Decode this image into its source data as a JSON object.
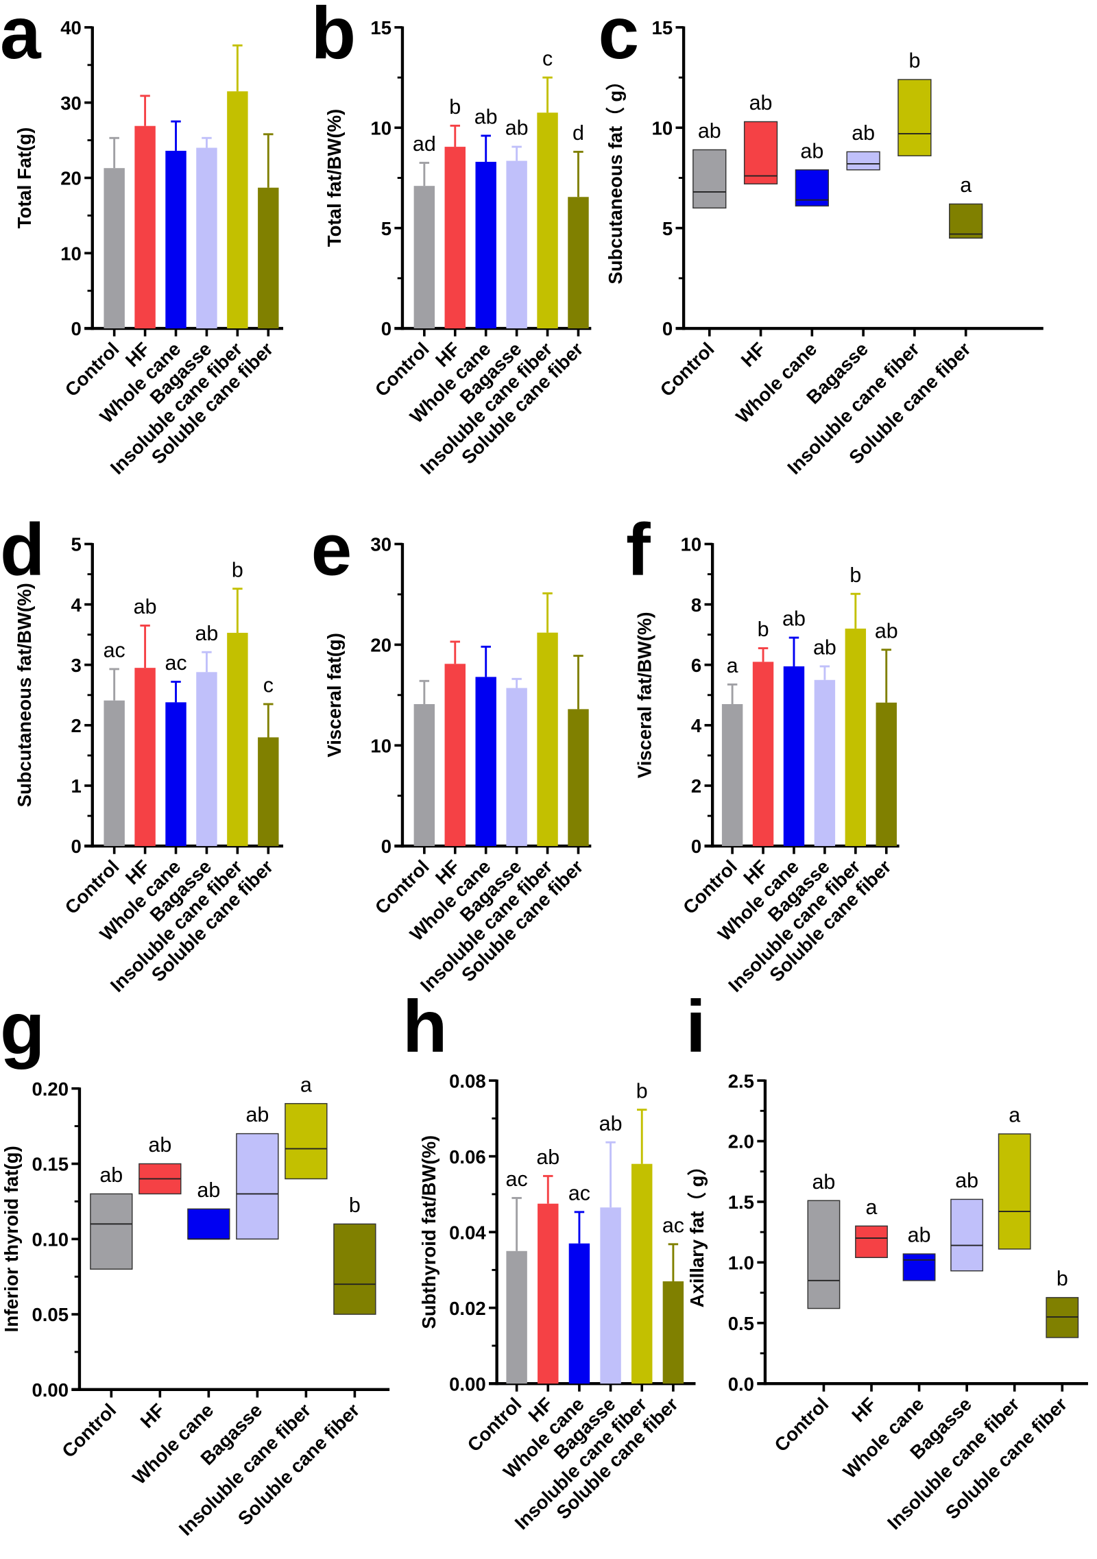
{
  "categories": [
    "Control",
    "HF",
    "Whole cane",
    "Bagasse",
    "Insoluble cane fiber",
    "Soluble cane fiber"
  ],
  "colors": [
    "#a0a0a4",
    "#f54145",
    "#0000f2",
    "#c0c0fa",
    "#c3c000",
    "#808000"
  ],
  "chart_data": [
    {
      "panel": "a",
      "type": "bar",
      "ylabel": "Total Fat(g)",
      "ylim": [
        0,
        40
      ],
      "yticks": [
        "0",
        "10",
        "20",
        "30",
        "40"
      ],
      "values": [
        21.3,
        26.9,
        23.6,
        24.0,
        31.5,
        18.7
      ],
      "error_upper": [
        25.3,
        30.9,
        27.5,
        25.3,
        37.6,
        25.8
      ],
      "letters": []
    },
    {
      "panel": "b",
      "type": "bar",
      "ylabel": "Total fat/BW(%)",
      "ylim": [
        0,
        15
      ],
      "yticks": [
        "0",
        "5",
        "10",
        "15"
      ],
      "values": [
        7.1,
        9.05,
        8.3,
        8.35,
        10.75,
        6.55
      ],
      "error_upper": [
        8.25,
        10.1,
        9.6,
        9.05,
        12.5,
        8.8
      ],
      "letters": [
        "ad",
        "b",
        "ab",
        "ab",
        "c",
        "d"
      ]
    },
    {
      "panel": "c",
      "type": "floating-box",
      "ylabel": "Subcutaneous fat（ g）",
      "ylim": [
        0,
        15
      ],
      "yticks": [
        "0",
        "5",
        "10",
        "15"
      ],
      "min": [
        6.0,
        7.2,
        6.1,
        7.9,
        8.6,
        4.5
      ],
      "median": [
        6.8,
        7.6,
        6.4,
        8.2,
        9.7,
        4.7
      ],
      "max": [
        8.9,
        10.3,
        7.9,
        8.8,
        12.4,
        6.2
      ],
      "letters": [
        "ab",
        "ab",
        "ab",
        "ab",
        "b",
        "a"
      ]
    },
    {
      "panel": "d",
      "type": "bar",
      "ylabel": "Subcutaneous fat/BW(%)",
      "ylim": [
        0,
        5
      ],
      "yticks": [
        "0",
        "1",
        "2",
        "3",
        "4",
        "5"
      ],
      "values": [
        2.41,
        2.95,
        2.38,
        2.88,
        3.53,
        1.8
      ],
      "error_upper": [
        2.93,
        3.65,
        2.72,
        3.21,
        4.26,
        2.35
      ],
      "letters": [
        "ac",
        "ab",
        "ac",
        "ab",
        "b",
        "c"
      ]
    },
    {
      "panel": "e",
      "type": "bar",
      "ylabel": "Visceral fat(g)",
      "ylim": [
        0,
        30
      ],
      "yticks": [
        "0",
        "10",
        "20",
        "30"
      ],
      "values": [
        14.1,
        18.1,
        16.8,
        15.7,
        21.2,
        13.6
      ],
      "error_upper": [
        16.4,
        20.3,
        19.8,
        16.6,
        25.1,
        18.9
      ],
      "letters": []
    },
    {
      "panel": "f",
      "type": "bar",
      "ylabel": "Visceral fat/BW(%)",
      "ylim": [
        0,
        10
      ],
      "yticks": [
        "0",
        "2",
        "4",
        "6",
        "8",
        "10"
      ],
      "values": [
        4.7,
        6.1,
        5.95,
        5.5,
        7.2,
        4.75
      ],
      "error_upper": [
        5.35,
        6.55,
        6.9,
        5.95,
        8.35,
        6.5
      ],
      "letters": [
        "a",
        "b",
        "ab",
        "ab",
        "b",
        "ab"
      ]
    },
    {
      "panel": "g",
      "type": "floating-box",
      "ylabel": "Inferior thyroid fat(g)",
      "ylim": [
        0,
        0.2
      ],
      "yticks": [
        "0.00",
        "0.05",
        "0.10",
        "0.15",
        "0.20"
      ],
      "min": [
        0.08,
        0.13,
        0.1,
        0.1,
        0.14,
        0.05
      ],
      "median": [
        0.11,
        0.14,
        0.1,
        0.13,
        0.16,
        0.07
      ],
      "max": [
        0.13,
        0.15,
        0.12,
        0.17,
        0.19,
        0.11
      ],
      "letters": [
        "ab",
        "ab",
        "ab",
        "ab",
        "a",
        "b"
      ]
    },
    {
      "panel": "h",
      "type": "bar",
      "ylabel": "Subthyroid fat/BW(%)",
      "ylim": [
        0,
        0.08
      ],
      "yticks": [
        "0.00",
        "0.02",
        "0.04",
        "0.06",
        "0.08"
      ],
      "values": [
        0.035,
        0.0475,
        0.037,
        0.0465,
        0.058,
        0.027
      ],
      "error_upper": [
        0.049,
        0.0548,
        0.0453,
        0.0637,
        0.0723,
        0.0368
      ],
      "letters": [
        "ac",
        "ab",
        "ac",
        "ab",
        "b",
        "ac"
      ]
    },
    {
      "panel": "i",
      "type": "floating-box",
      "ylabel": "Axillary fat（ g）",
      "ylim": [
        0,
        2.5
      ],
      "yticks": [
        "0.0",
        "0.5",
        "1.0",
        "1.5",
        "2.0",
        "2.5"
      ],
      "min": [
        0.62,
        1.04,
        0.85,
        0.93,
        1.11,
        0.38
      ],
      "median": [
        0.85,
        1.2,
        1.02,
        1.14,
        1.42,
        0.55
      ],
      "max": [
        1.51,
        1.3,
        1.07,
        1.52,
        2.06,
        0.71
      ],
      "letters": [
        "ab",
        "a",
        "ab",
        "ab",
        "a",
        "b"
      ]
    }
  ]
}
